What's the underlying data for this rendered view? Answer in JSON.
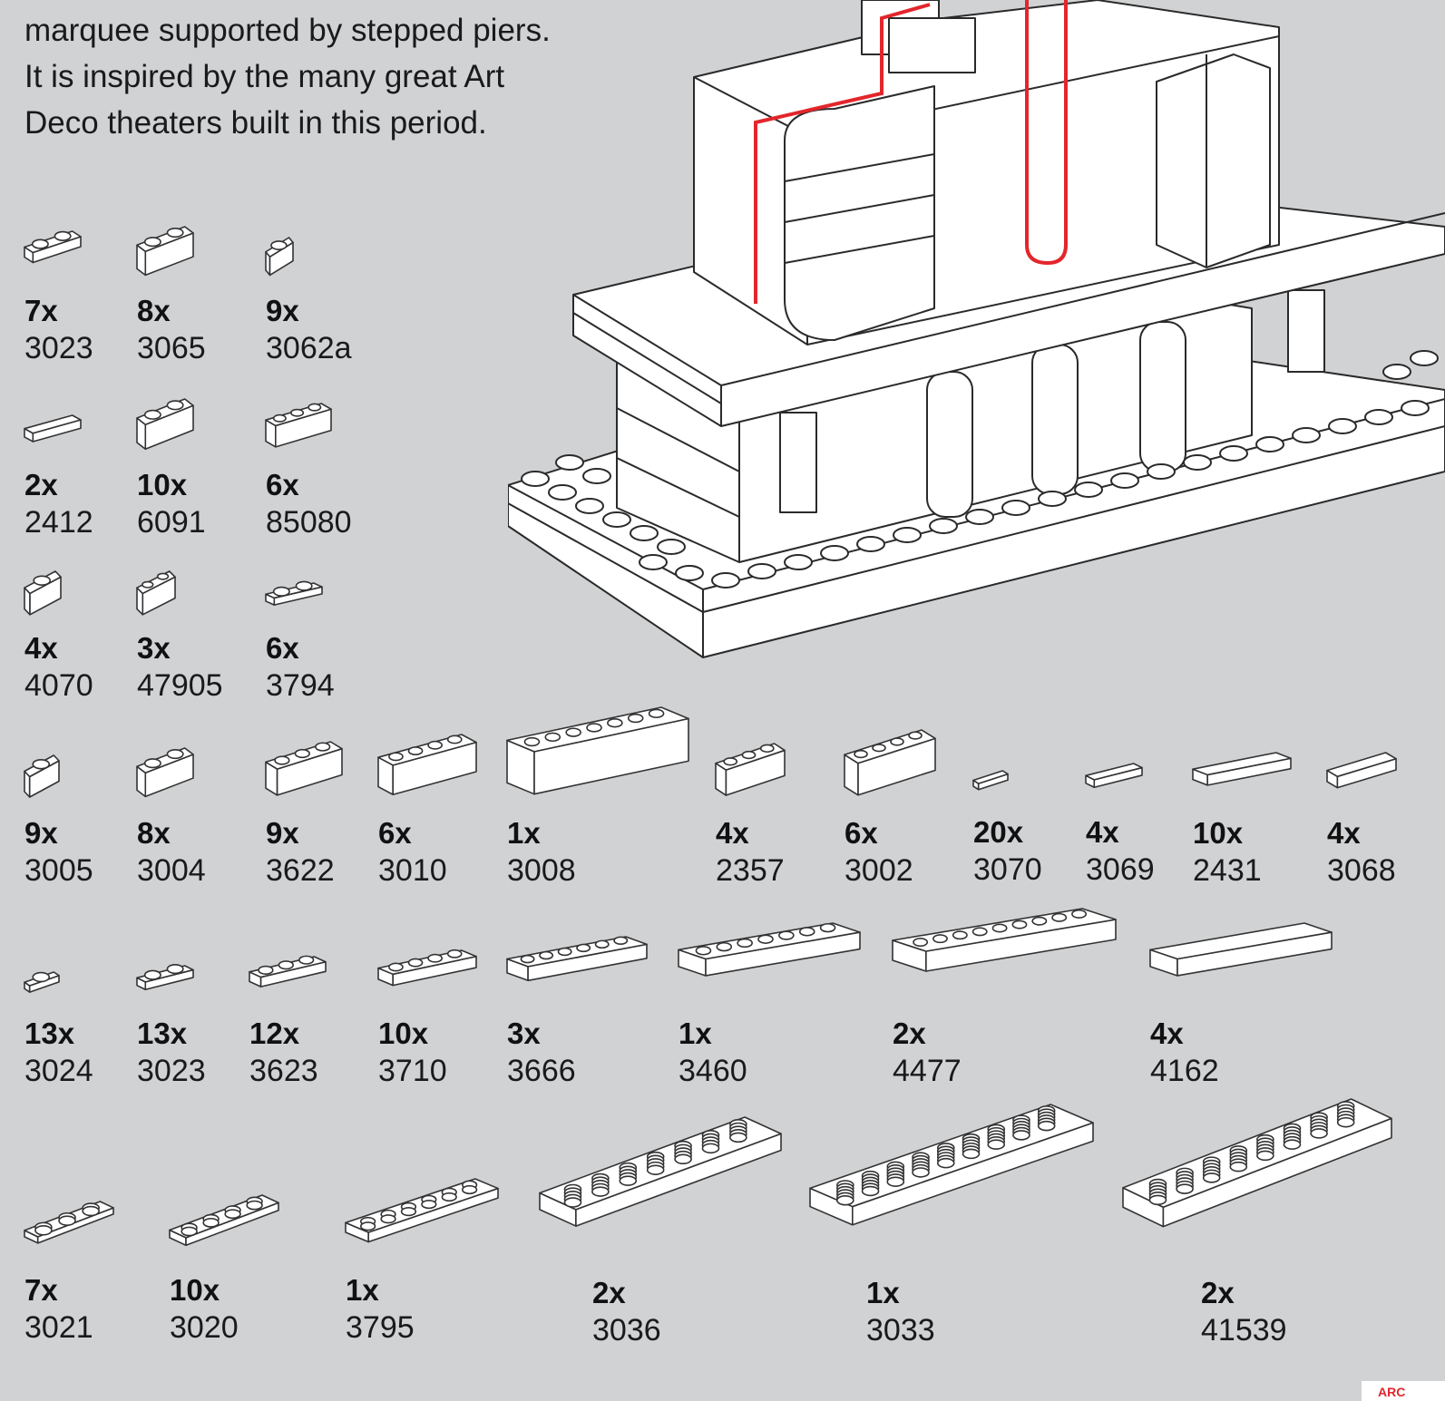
{
  "intro": {
    "lines": [
      "marquee supported by stepped piers.",
      "It is inspired by the many great Art",
      "Deco theaters built in this period."
    ]
  },
  "parts": [
    {
      "qty": "7x",
      "id": "3023",
      "icon": "plate-1x2-icon"
    },
    {
      "qty": "8x",
      "id": "3065",
      "icon": "brick-1x2-transparent-icon"
    },
    {
      "qty": "9x",
      "id": "3062a",
      "icon": "round-brick-1x1-icon"
    },
    {
      "qty": "2x",
      "id": "2412",
      "icon": "grille-tile-icon"
    },
    {
      "qty": "10x",
      "id": "6091",
      "icon": "curved-brick-icon"
    },
    {
      "qty": "6x",
      "id": "85080",
      "icon": "round-corner-plate-icon"
    },
    {
      "qty": "4x",
      "id": "4070",
      "icon": "headlight-brick-icon"
    },
    {
      "qty": "3x",
      "id": "47905",
      "icon": "side-stud-brick-icon"
    },
    {
      "qty": "6x",
      "id": "3794",
      "icon": "jumper-plate-icon"
    },
    {
      "qty": "9x",
      "id": "3005",
      "icon": "brick-1x1-icon"
    },
    {
      "qty": "8x",
      "id": "3004",
      "icon": "brick-1x2-icon"
    },
    {
      "qty": "9x",
      "id": "3622",
      "icon": "brick-1x3-icon"
    },
    {
      "qty": "6x",
      "id": "3010",
      "icon": "brick-1x4-icon"
    },
    {
      "qty": "1x",
      "id": "3008",
      "icon": "brick-1x8-icon"
    },
    {
      "qty": "4x",
      "id": "2357",
      "icon": "corner-brick-icon"
    },
    {
      "qty": "6x",
      "id": "3002",
      "icon": "brick-2x3-icon"
    },
    {
      "qty": "20x",
      "id": "3070",
      "icon": "tile-1x1-icon"
    },
    {
      "qty": "4x",
      "id": "3069",
      "icon": "tile-1x2-icon"
    },
    {
      "qty": "10x",
      "id": "2431",
      "icon": "tile-1x4-icon"
    },
    {
      "qty": "4x",
      "id": "3068",
      "icon": "tile-2x2-icon"
    },
    {
      "qty": "13x",
      "id": "3024",
      "icon": "plate-1x1-icon"
    },
    {
      "qty": "13x",
      "id": "3023",
      "icon": "plate-1x2-icon"
    },
    {
      "qty": "12x",
      "id": "3623",
      "icon": "plate-1x3-icon"
    },
    {
      "qty": "10x",
      "id": "3710",
      "icon": "plate-1x4-icon"
    },
    {
      "qty": "3x",
      "id": "3666",
      "icon": "plate-1x6-icon"
    },
    {
      "qty": "1x",
      "id": "3460",
      "icon": "plate-1x8-icon"
    },
    {
      "qty": "2x",
      "id": "4477",
      "icon": "plate-1x10-icon"
    },
    {
      "qty": "4x",
      "id": "4162",
      "icon": "tile-1x8-icon"
    },
    {
      "qty": "7x",
      "id": "3021",
      "icon": "plate-2x3-icon"
    },
    {
      "qty": "10x",
      "id": "3020",
      "icon": "plate-2x4-icon"
    },
    {
      "qty": "1x",
      "id": "3795",
      "icon": "plate-2x6-icon"
    },
    {
      "qty": "2x",
      "id": "3036",
      "icon": "plate-6x8-icon"
    },
    {
      "qty": "1x",
      "id": "3033",
      "icon": "plate-6x10-icon"
    },
    {
      "qty": "2x",
      "id": "41539",
      "icon": "plate-8x8-icon"
    }
  ],
  "colors": {
    "background": "#d1d2d4",
    "brick": "#ffffff",
    "outline": "#2a2a2a",
    "accent": "#e3262b"
  }
}
